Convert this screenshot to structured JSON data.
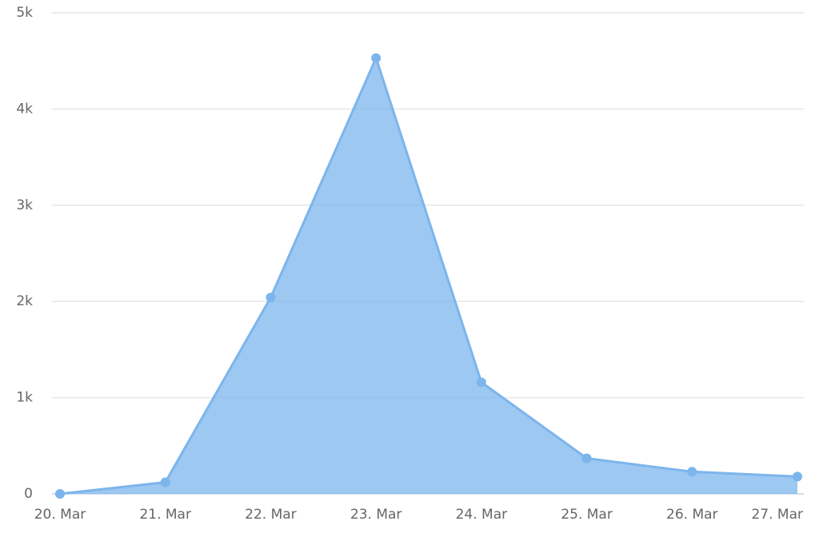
{
  "chart_data": {
    "type": "area",
    "categories": [
      "20. Mar",
      "21. Mar",
      "22. Mar",
      "23. Mar",
      "24. Mar",
      "25. Mar",
      "26. Mar",
      "27. Mar"
    ],
    "values": [
      0,
      120,
      2040,
      4530,
      1160,
      370,
      230,
      180
    ],
    "color": "#7cb5ec",
    "ylim": [
      0,
      5000
    ],
    "yticks": [
      0,
      {
        "value": 1000,
        "label": "1k"
      },
      {
        "value": 2000,
        "label": "2k"
      },
      {
        "value": 3000,
        "label": "3k"
      },
      {
        "value": 4000,
        "label": "4k"
      },
      {
        "value": 5000,
        "label": "5k"
      }
    ],
    "grid": true
  }
}
